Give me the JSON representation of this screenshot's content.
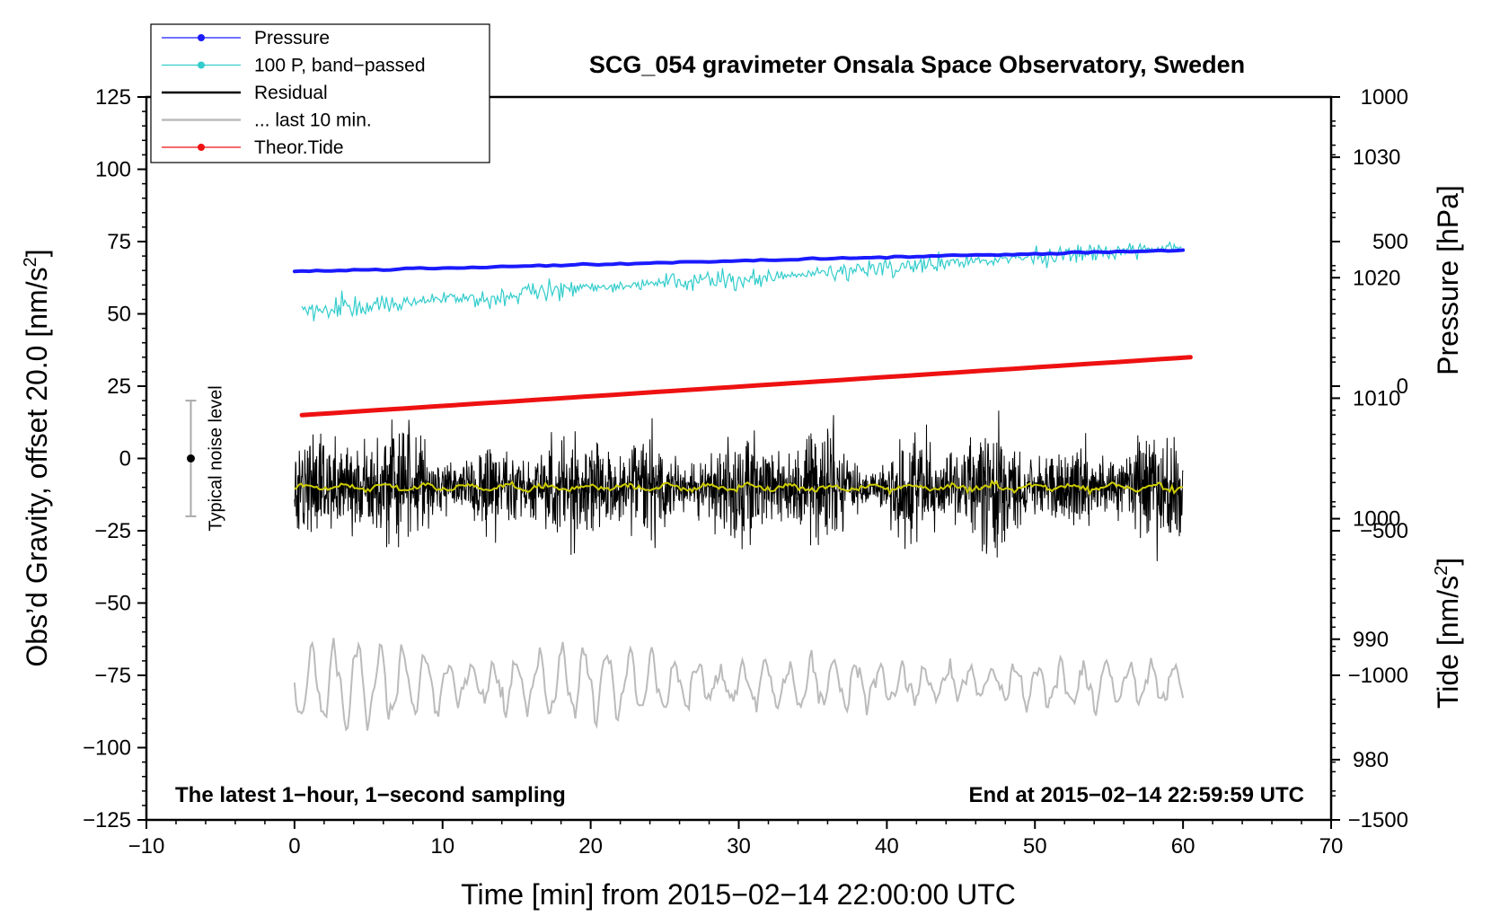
{
  "chart_data": {
    "type": "line",
    "title": "SCG_054 gravimeter Onsala Space Observatory, Sweden",
    "xlabel": "Time [min] from 2015−02−14 22:00:00 UTC",
    "ylabel_left": "Obs’d Gravity, offset 20.0 [nm/s",
    "ylabel_left_sup": "2",
    "ylabel_left_end": "]",
    "ylabel_right_pressure": "Pressure [hPa]",
    "ylabel_right_tide": "Tide [nm/s",
    "ylabel_right_tide_sup": "2",
    "ylabel_right_tide_end": "]",
    "xlim": [
      -10,
      70
    ],
    "ylim_left": [
      -125,
      125
    ],
    "pressure_axis_range": [
      975,
      1035
    ],
    "tide_axis_range": [
      -1500,
      1000
    ],
    "x_ticks": [
      "−10",
      "0",
      "10",
      "20",
      "30",
      "40",
      "50",
      "60",
      "70"
    ],
    "left_ticks": [
      "125",
      "100",
      "75",
      "50",
      "25",
      "0",
      "−25",
      "−50",
      "−75",
      "−100",
      "−125"
    ],
    "pressure_ticks": [
      "1030",
      "1020",
      "1010",
      "1000",
      "990",
      "980"
    ],
    "tide_ticks": [
      "1000",
      "500",
      "0",
      "−500",
      "−1000",
      "−1500"
    ],
    "legend": [
      {
        "name": "Pressure",
        "color": "#1a1aff",
        "marker": true
      },
      {
        "name": "100 P, band−passed",
        "color": "#33cccc",
        "marker": true
      },
      {
        "name": "Residual",
        "color": "#000000",
        "marker": false
      },
      {
        "name": "... last 10 min.",
        "color": "#bbbbbb",
        "marker": false
      },
      {
        "name": "Theor.Tide",
        "color": "#ee1111",
        "marker": true
      }
    ],
    "series": [
      {
        "name": "Pressure",
        "axis": "pressure",
        "x": [
          0,
          60
        ],
        "values": [
          1020.5,
          1022.3
        ],
        "color": "#1a1aff"
      },
      {
        "name": "100 P, band−passed",
        "axis": "left",
        "x": [
          0,
          10,
          20,
          30,
          40,
          50,
          60
        ],
        "values": [
          51,
          55,
          59,
          62,
          66,
          70,
          73
        ],
        "color": "#33cccc"
      },
      {
        "name": "Residual",
        "axis": "left",
        "x": [
          0,
          60
        ],
        "values": [
          -10,
          -10
        ],
        "spread": 15,
        "color": "#000000"
      },
      {
        "name": "Residual mean",
        "axis": "left",
        "x": [
          0,
          60
        ],
        "values": [
          -10,
          -10
        ],
        "color": "#cccc00"
      },
      {
        "name": "... last 10 min.",
        "axis": "left",
        "x": [
          0,
          60
        ],
        "values": [
          -78,
          -78
        ],
        "spread": 13,
        "color": "#bbbbbb"
      },
      {
        "name": "Theor.Tide",
        "axis": "tide",
        "x": [
          0.5,
          60.5
        ],
        "values": [
          -100,
          100
        ],
        "color": "#ee1111"
      }
    ],
    "annotations": {
      "noise_label": "Typical noise level",
      "noise_center": 0,
      "noise_half_range": 20,
      "noise_x": -7,
      "bottom_left": "The latest 1−hour, 1−second sampling",
      "bottom_right": "End at 2015−02−14 22:59:59 UTC"
    }
  }
}
